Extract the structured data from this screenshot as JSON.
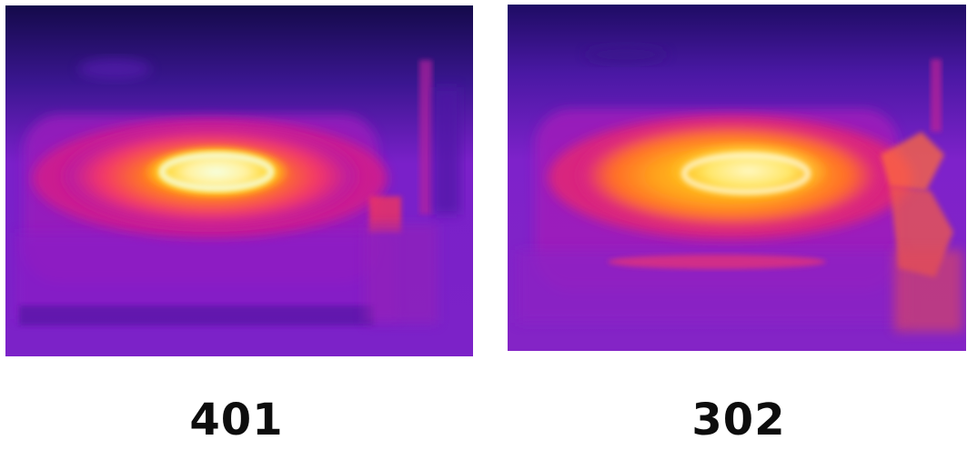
{
  "captions": {
    "left": "401",
    "right": "302"
  },
  "palette": {
    "background": "#ffffff",
    "thermal_cold": "#1a0a5e",
    "thermal_cool": "#6a1bc4",
    "thermal_mid": "#d4109a",
    "thermal_warm": "#ff5a2a",
    "thermal_hot": "#ffc21a",
    "thermal_hottest": "#f2ffd8",
    "caption_text": "#0d0d0d"
  }
}
